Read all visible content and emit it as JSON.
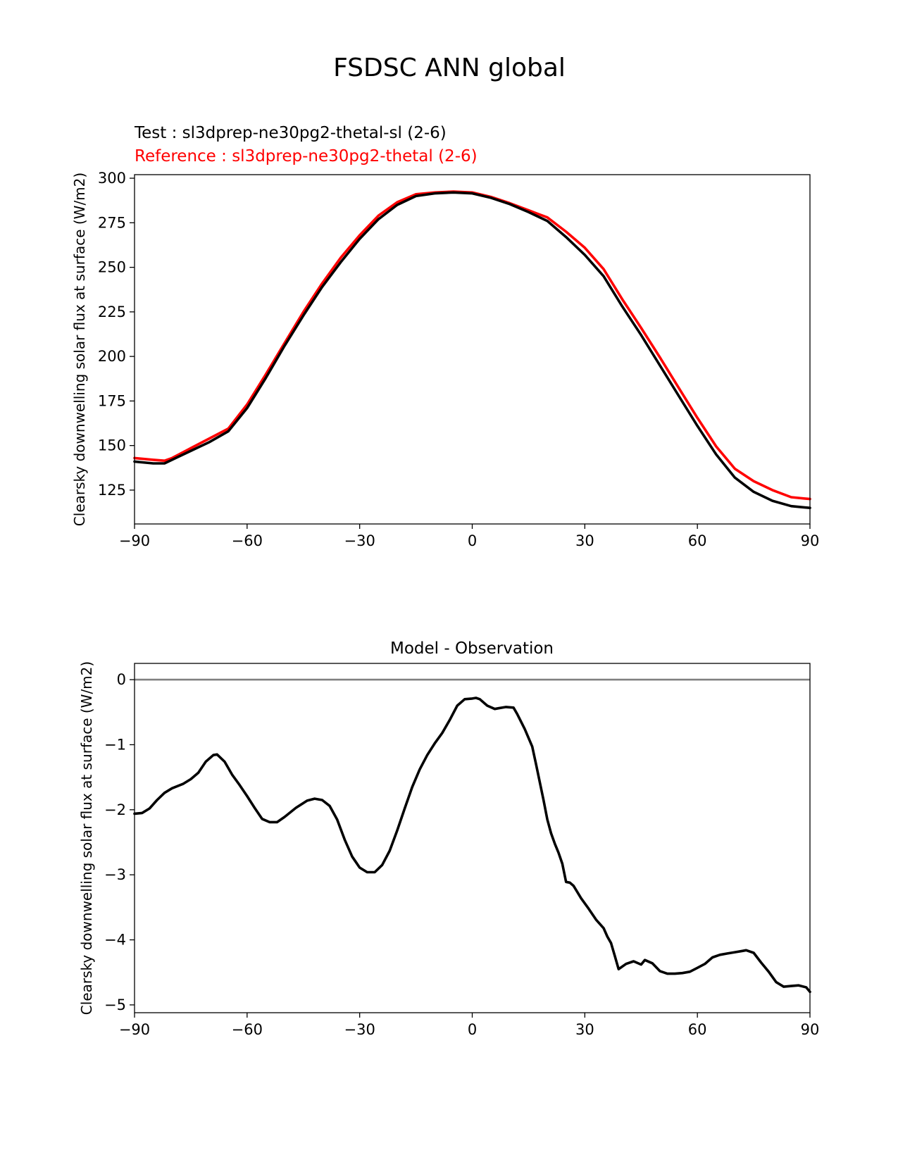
{
  "figure": {
    "title": "FSDSC ANN global"
  },
  "chart_data": [
    {
      "type": "line",
      "legend": {
        "test_label": "Test : sl3dprep-ne30pg2-thetal-sl (2-6)",
        "reference_label": "Reference : sl3dprep-ne30pg2-thetal (2-6)",
        "placement": "top-left (above plot)"
      },
      "ylabel": "Clearsky downwelling solar flux at surface (W/m2)",
      "xlabel": "",
      "xlim": [
        -90,
        90
      ],
      "ylim": [
        106,
        302
      ],
      "xticks": [
        -90,
        -60,
        -30,
        0,
        30,
        60,
        90
      ],
      "xtick_labels": [
        "−90",
        "−60",
        "−30",
        "0",
        "30",
        "60",
        "90"
      ],
      "yticks": [
        125,
        150,
        175,
        200,
        225,
        250,
        275,
        300
      ],
      "ytick_labels": [
        "125",
        "150",
        "175",
        "200",
        "225",
        "250",
        "275",
        "300"
      ],
      "series": [
        {
          "name": "Test : sl3dprep-ne30pg2-thetal-sl (2-6)",
          "color": "#000000",
          "x": [
            -90,
            -85,
            -82,
            -80,
            -75,
            -70,
            -65,
            -60,
            -55,
            -50,
            -45,
            -40,
            -35,
            -30,
            -25,
            -20,
            -15,
            -10,
            -5,
            0,
            5,
            10,
            15,
            20,
            25,
            30,
            35,
            40,
            45,
            50,
            55,
            60,
            65,
            70,
            75,
            80,
            85,
            90
          ],
          "y": [
            141,
            140,
            140,
            142,
            147,
            152,
            158,
            171,
            188,
            206,
            223,
            239,
            253,
            266,
            277,
            285,
            290,
            291.5,
            292,
            291.5,
            289,
            285.5,
            281,
            276,
            267,
            257,
            245,
            228,
            212,
            195,
            178,
            161,
            145,
            132,
            124,
            119,
            116,
            115
          ]
        },
        {
          "name": "Reference : sl3dprep-ne30pg2-thetal (2-6)",
          "color": "#ff0000",
          "x": [
            -90,
            -85,
            -82,
            -80,
            -75,
            -70,
            -65,
            -60,
            -55,
            -50,
            -45,
            -40,
            -35,
            -30,
            -25,
            -20,
            -15,
            -10,
            -5,
            0,
            5,
            10,
            15,
            20,
            25,
            30,
            35,
            40,
            45,
            50,
            55,
            60,
            65,
            70,
            75,
            80,
            85,
            90
          ],
          "y": [
            143,
            142,
            141.5,
            143,
            148.5,
            154,
            159.5,
            173,
            190,
            207.5,
            225,
            241,
            255.5,
            268,
            279,
            286.5,
            291,
            292,
            292.5,
            292,
            289.5,
            286,
            282,
            278,
            270,
            261,
            249,
            232,
            216,
            199.5,
            182.5,
            165.5,
            149.5,
            137,
            130,
            125,
            121,
            120
          ]
        }
      ]
    },
    {
      "type": "line",
      "title": "Model - Observation",
      "ylabel": "Clearsky downwelling solar flux at surface (W/m2)",
      "xlabel": "",
      "xlim": [
        -90,
        90
      ],
      "ylim": [
        -5.12,
        0.25
      ],
      "xticks": [
        -90,
        -60,
        -30,
        0,
        30,
        60,
        90
      ],
      "xtick_labels": [
        "−90",
        "−60",
        "−30",
        "0",
        "30",
        "60",
        "90"
      ],
      "yticks": [
        0,
        -1,
        -2,
        -3,
        -4,
        -5
      ],
      "ytick_labels": [
        "0",
        "−1",
        "−2",
        "−3",
        "−4",
        "−5"
      ],
      "zero_line": {
        "value": 0,
        "color": "#808080"
      },
      "series": [
        {
          "color": "#000000",
          "x": [
            -90,
            -88,
            -86,
            -84,
            -82,
            -80,
            -77,
            -75,
            -73,
            -71,
            -69,
            -68,
            -66,
            -64,
            -62,
            -60,
            -58,
            -56,
            -54,
            -52,
            -50,
            -47,
            -44,
            -42,
            -40,
            -38,
            -36,
            -34,
            -32,
            -30,
            -28,
            -26,
            -24,
            -22,
            -20,
            -18,
            -16,
            -14,
            -12,
            -10,
            -8,
            -6,
            -4,
            -2,
            0,
            1,
            2,
            4,
            6,
            7,
            9,
            11,
            12,
            14,
            16,
            17,
            19,
            20,
            21,
            22,
            23,
            24,
            25,
            26,
            27,
            29,
            31,
            33,
            35,
            36,
            37,
            38,
            39,
            41,
            43,
            45,
            46,
            48,
            50,
            52,
            54,
            56,
            58,
            60,
            62,
            64,
            66,
            68,
            70,
            72,
            73,
            75,
            77,
            79,
            81,
            83,
            85,
            87,
            89,
            90
          ],
          "y": [
            -2.06,
            -2.05,
            -1.98,
            -1.85,
            -1.74,
            -1.67,
            -1.6,
            -1.53,
            -1.43,
            -1.26,
            -1.16,
            -1.15,
            -1.26,
            -1.46,
            -1.62,
            -1.79,
            -1.97,
            -2.14,
            -2.19,
            -2.19,
            -2.11,
            -1.97,
            -1.86,
            -1.83,
            -1.85,
            -1.94,
            -2.15,
            -2.46,
            -2.72,
            -2.89,
            -2.96,
            -2.96,
            -2.85,
            -2.63,
            -2.32,
            -1.98,
            -1.65,
            -1.38,
            -1.16,
            -0.98,
            -0.82,
            -0.62,
            -0.4,
            -0.3,
            -0.29,
            -0.28,
            -0.3,
            -0.4,
            -0.45,
            -0.44,
            -0.42,
            -0.43,
            -0.53,
            -0.76,
            -1.03,
            -1.3,
            -1.85,
            -2.15,
            -2.36,
            -2.52,
            -2.66,
            -2.83,
            -3.11,
            -3.12,
            -3.17,
            -3.36,
            -3.52,
            -3.69,
            -3.82,
            -3.95,
            -4.05,
            -4.25,
            -4.45,
            -4.37,
            -4.33,
            -4.38,
            -4.31,
            -4.36,
            -4.48,
            -4.52,
            -4.52,
            -4.51,
            -4.49,
            -4.43,
            -4.37,
            -4.27,
            -4.23,
            -4.21,
            -4.19,
            -4.17,
            -4.16,
            -4.2,
            -4.35,
            -4.49,
            -4.65,
            -4.72,
            -4.71,
            -4.7,
            -4.73,
            -4.8
          ]
        }
      ]
    }
  ]
}
